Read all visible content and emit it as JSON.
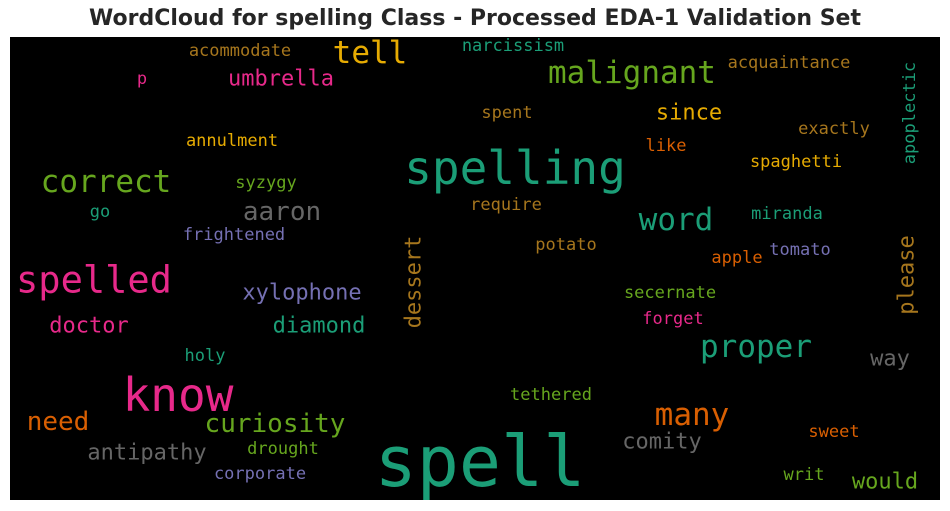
{
  "chart_data": {
    "type": "wordcloud",
    "title": "WordCloud for spelling Class - Processed EDA-1 Validation Set",
    "background": "#000000",
    "words": [
      {
        "text": "spell",
        "color": "#1b9e77"
      },
      {
        "text": "spelling",
        "color": "#1b9e77"
      },
      {
        "text": "know",
        "color": "#e7298a"
      },
      {
        "text": "spelled",
        "color": "#e7298a"
      },
      {
        "text": "correct",
        "color": "#66a61e"
      },
      {
        "text": "malignant",
        "color": "#66a61e"
      },
      {
        "text": "tell",
        "color": "#e6ab02"
      },
      {
        "text": "word",
        "color": "#1b9e77"
      },
      {
        "text": "proper",
        "color": "#1b9e77"
      },
      {
        "text": "many",
        "color": "#d95f02"
      },
      {
        "text": "curiosity",
        "color": "#66a61e"
      },
      {
        "text": "need",
        "color": "#d95f02"
      },
      {
        "text": "aaron",
        "color": "#666666"
      },
      {
        "text": "antipathy",
        "color": "#666666"
      },
      {
        "text": "umbrella",
        "color": "#e7298a"
      },
      {
        "text": "diamond",
        "color": "#1b9e77"
      },
      {
        "text": "xylophone",
        "color": "#7570b3"
      },
      {
        "text": "doctor",
        "color": "#e7298a"
      },
      {
        "text": "dessert",
        "color": "#a6761d"
      },
      {
        "text": "please",
        "color": "#a6761d"
      },
      {
        "text": "way",
        "color": "#666666"
      },
      {
        "text": "comity",
        "color": "#666666"
      },
      {
        "text": "would",
        "color": "#66a61e"
      },
      {
        "text": "since",
        "color": "#e6ab02"
      },
      {
        "text": "apoplectic",
        "color": "#1b9e77"
      },
      {
        "text": "acquaintance",
        "color": "#a6761d"
      },
      {
        "text": "exactly",
        "color": "#a6761d"
      },
      {
        "text": "spaghetti",
        "color": "#e6ab02"
      },
      {
        "text": "miranda",
        "color": "#1b9e77"
      },
      {
        "text": "narcissism",
        "color": "#1b9e77"
      },
      {
        "text": "acommodate",
        "color": "#a6761d"
      },
      {
        "text": "p",
        "color": "#e7298a"
      },
      {
        "text": "spent",
        "color": "#a6761d"
      },
      {
        "text": "like",
        "color": "#d95f02"
      },
      {
        "text": "annulment",
        "color": "#e6ab02"
      },
      {
        "text": "syzygy",
        "color": "#66a61e"
      },
      {
        "text": "go",
        "color": "#1b9e77"
      },
      {
        "text": "frightened",
        "color": "#7570b3"
      },
      {
        "text": "require",
        "color": "#a6761d"
      },
      {
        "text": "potato",
        "color": "#a6761d"
      },
      {
        "text": "apple",
        "color": "#d95f02"
      },
      {
        "text": "tomato",
        "color": "#7570b3"
      },
      {
        "text": "secernate",
        "color": "#66a61e"
      },
      {
        "text": "forget",
        "color": "#e7298a"
      },
      {
        "text": "holy",
        "color": "#1b9e77"
      },
      {
        "text": "tethered",
        "color": "#66a61e"
      },
      {
        "text": "drought",
        "color": "#66a61e"
      },
      {
        "text": "corporate",
        "color": "#7570b3"
      },
      {
        "text": "sweet",
        "color": "#d95f02"
      },
      {
        "text": "writ",
        "color": "#66a61e"
      }
    ]
  }
}
